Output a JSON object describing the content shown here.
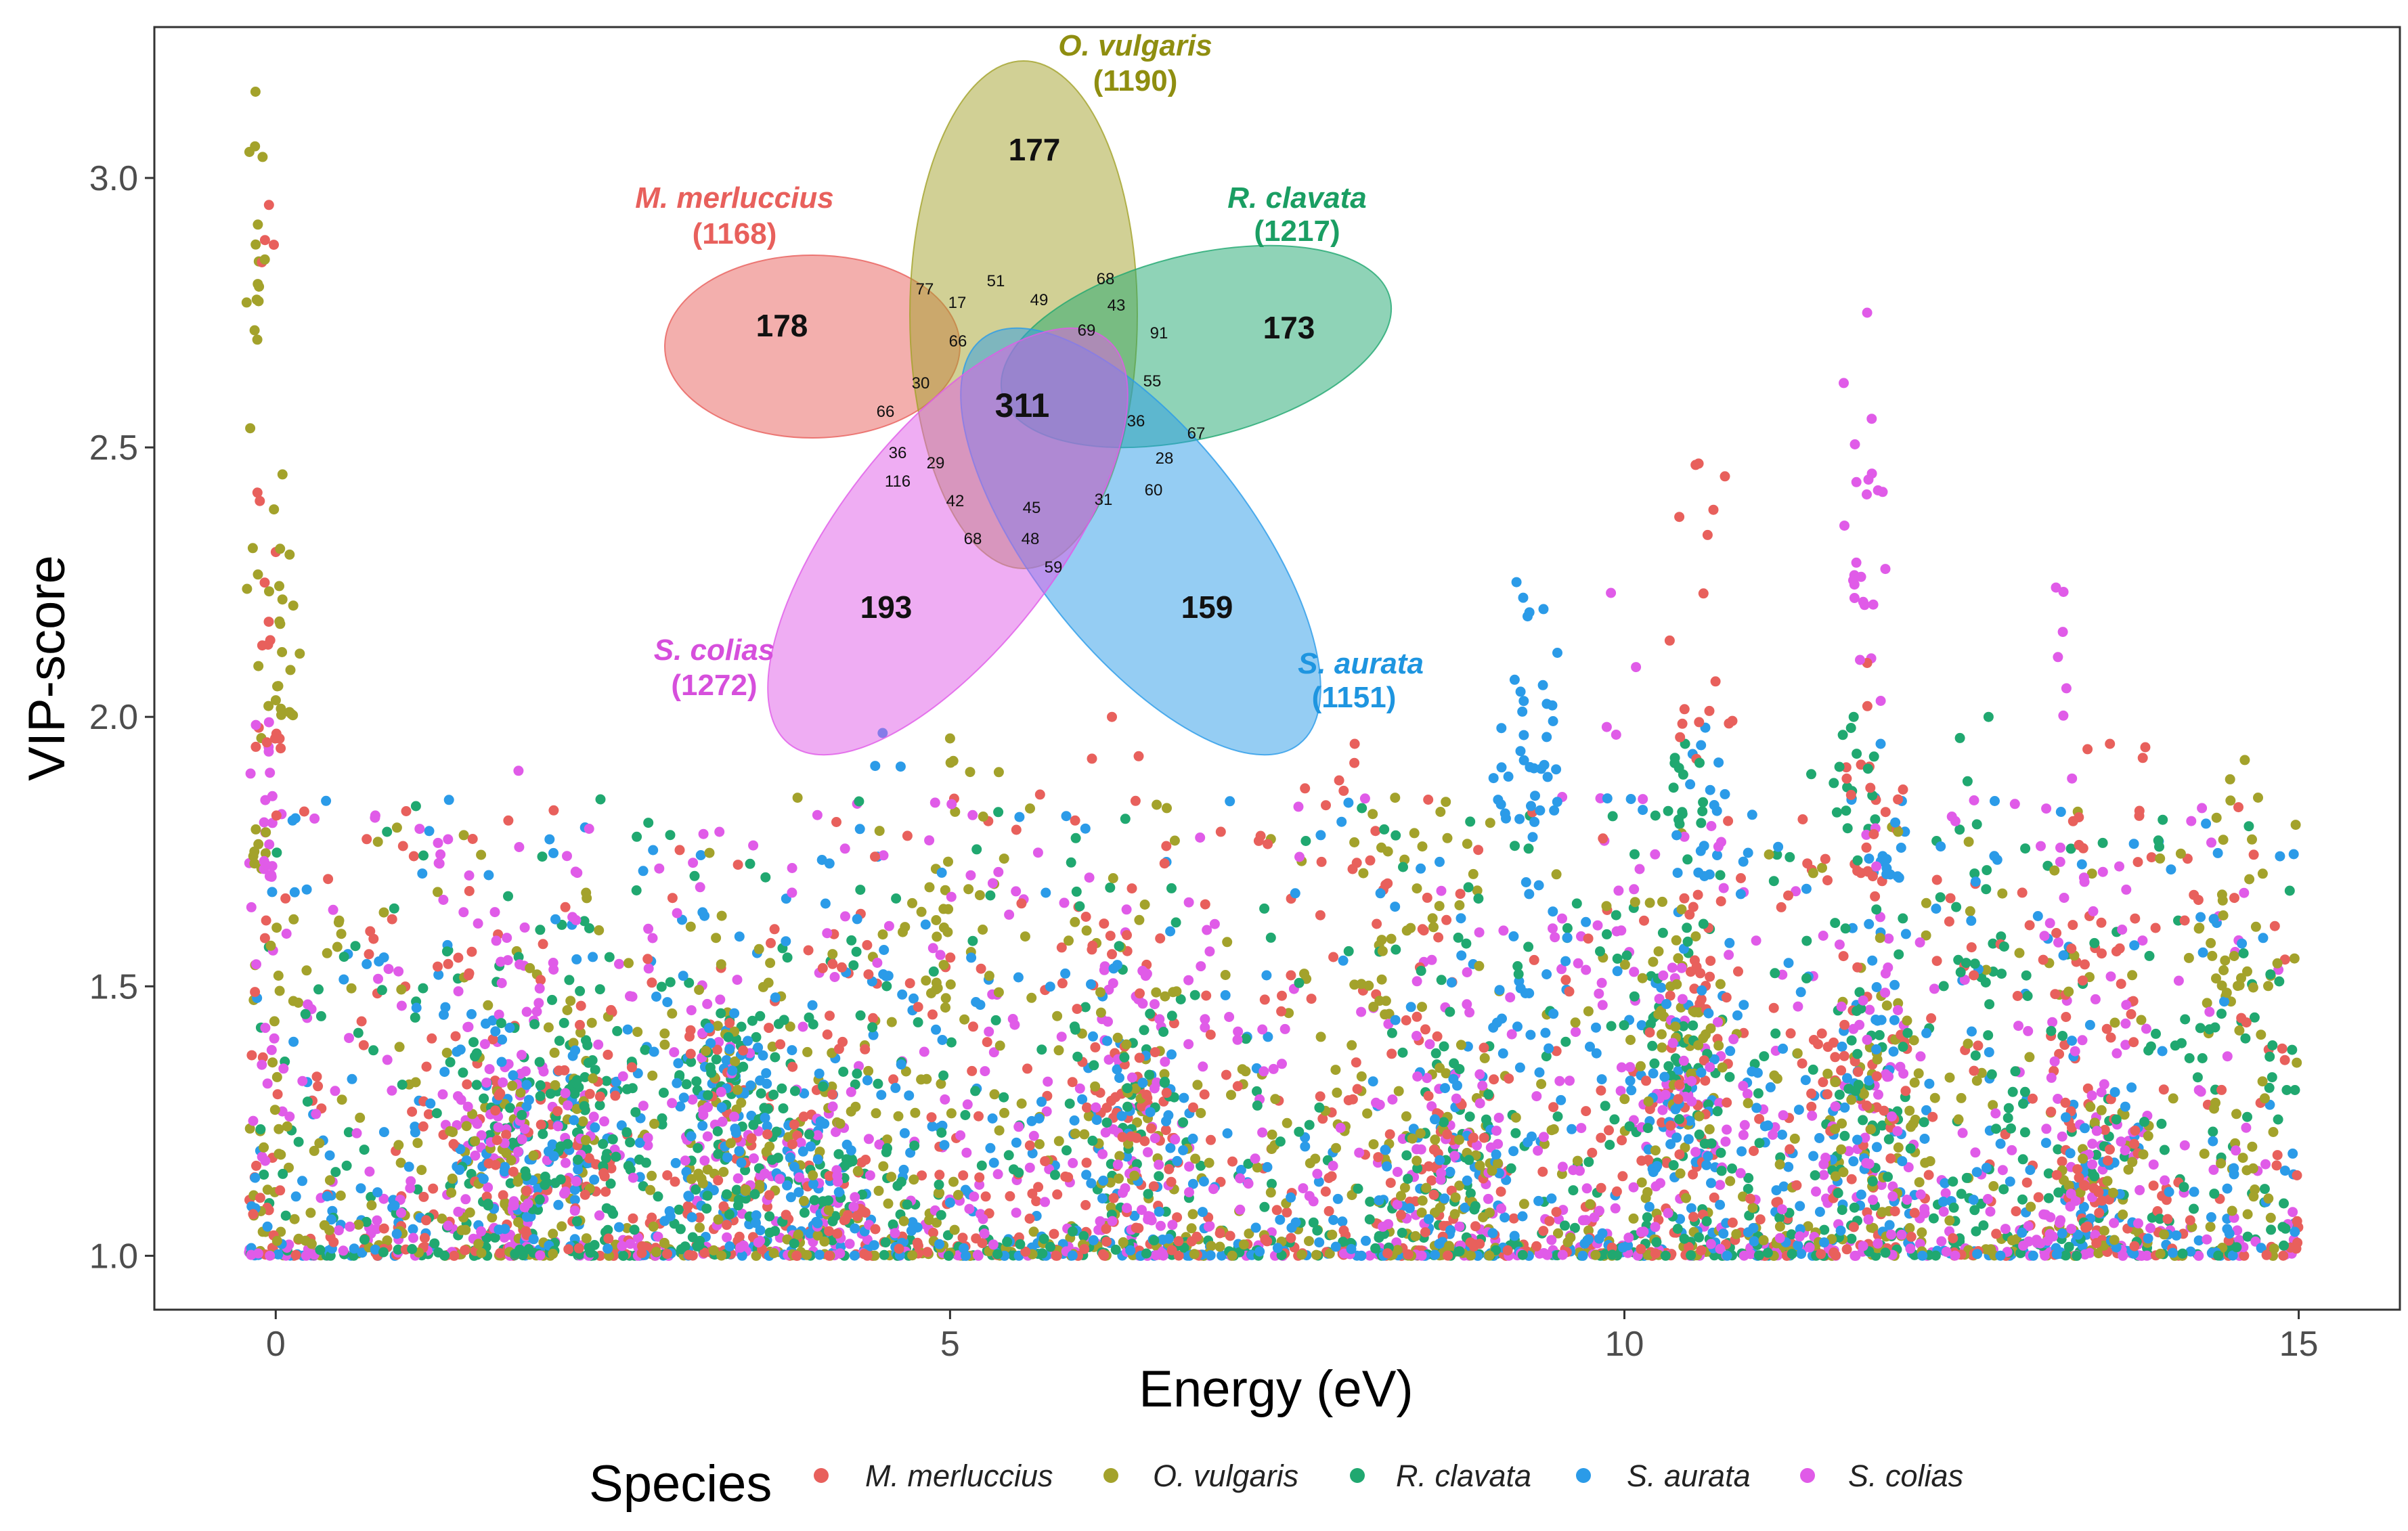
{
  "chart_data": {
    "type": "scatter",
    "xlabel": "Energy (eV)",
    "ylabel": "VIP-score",
    "xlim": [
      -0.9,
      15.75
    ],
    "ylim": [
      0.9,
      3.28
    ],
    "x_ticks": [
      0,
      5,
      10,
      15
    ],
    "y_ticks": [
      1.0,
      1.5,
      2.0,
      2.5,
      3.0
    ],
    "x_tick_labels": [
      "0",
      "5",
      "10",
      "15"
    ],
    "y_tick_labels": [
      "1.0",
      "1.5",
      "2.0",
      "2.5",
      "3.0"
    ],
    "grid": false,
    "legend": {
      "title": "Species",
      "position": "bottom",
      "entries": [
        "M. merluccius",
        "O. vulgaris",
        "R. clavata",
        "S. aurata",
        "S. colias"
      ]
    },
    "series": [
      {
        "name": "M. merluccius",
        "color": "#E8605C",
        "n": 1100,
        "peaks": [
          [
            -0.05,
            2.95,
            1.92,
            0.06
          ],
          [
            10.55,
            2.47,
            1.95,
            0.12
          ],
          [
            8.0,
            1.95,
            1.6,
            0.3
          ],
          [
            6.2,
            2.0,
            1.5,
            0.3
          ],
          [
            11.8,
            2.1,
            1.7,
            0.15
          ],
          [
            13.6,
            1.95,
            1.5,
            0.2
          ]
        ]
      },
      {
        "name": "O. vulgaris",
        "color": "#A3A22B",
        "n": 1100,
        "peaks": [
          [
            -0.15,
            3.16,
            2.7,
            0.04
          ],
          [
            0.05,
            2.45,
            2.0,
            0.08
          ],
          [
            8.3,
            1.85,
            1.5,
            0.3
          ],
          [
            5.0,
            1.96,
            1.6,
            0.2
          ],
          [
            14.6,
            1.92,
            1.5,
            0.2
          ]
        ]
      },
      {
        "name": "R. clavata",
        "color": "#20A870",
        "n": 1150,
        "peaks": [
          [
            10.45,
            1.95,
            1.8,
            0.13
          ],
          [
            11.7,
            2.0,
            1.85,
            0.15
          ],
          [
            3.3,
            1.45,
            1.3,
            0.2
          ],
          [
            2.3,
            1.4,
            1.3,
            0.2
          ],
          [
            12.7,
            2.0,
            1.5,
            0.2
          ]
        ]
      },
      {
        "name": "S. aurata",
        "color": "#2B9BE8",
        "n": 1100,
        "peaks": [
          [
            9.2,
            2.25,
            1.8,
            0.12
          ],
          [
            9.4,
            2.2,
            1.9,
            0.08
          ],
          [
            10.6,
            1.98,
            1.7,
            0.13
          ],
          [
            11.9,
            1.95,
            1.7,
            0.12
          ],
          [
            4.5,
            1.97,
            1.5,
            0.3
          ],
          [
            3.4,
            1.45,
            1.3,
            0.2
          ]
        ]
      },
      {
        "name": "S. colias",
        "color": "#E05BE8",
        "n": 1150,
        "peaks": [
          [
            11.8,
            2.75,
            2.2,
            0.1
          ],
          [
            9.9,
            2.23,
            1.6,
            0.2
          ],
          [
            13.2,
            2.24,
            1.6,
            0.2
          ],
          [
            1.8,
            1.9,
            1.5,
            0.15
          ],
          [
            6.3,
            1.6,
            1.4,
            0.3
          ],
          [
            -0.05,
            1.99,
            1.7,
            0.06
          ],
          [
            1.7,
            1.35,
            1.2,
            0.15
          ]
        ]
      }
    ],
    "inset_venn": {
      "type": "venn",
      "sets": [
        {
          "name": "M. merluccius",
          "total": "(1168)",
          "unique": "178",
          "color": "#E8605C",
          "label_color": "#E8605C"
        },
        {
          "name": "O. vulgaris",
          "total": "(1190)",
          "unique": "177",
          "color": "#A3A22B",
          "label_color": "#8F8E10"
        },
        {
          "name": "R. clavata",
          "total": "(1217)",
          "unique": "173",
          "color": "#20A870",
          "label_color": "#1A9E63"
        },
        {
          "name": "S. aurata",
          "total": "(1151)",
          "unique": "159",
          "color": "#2B9BE8",
          "label_color": "#1E95E0"
        },
        {
          "name": "S. colias",
          "total": "(1272)",
          "unique": "193",
          "color": "#E05BE8",
          "label_color": "#D64FDC"
        }
      ],
      "center": "311",
      "intersections": [
        "77",
        "51",
        "68",
        "17",
        "49",
        "43",
        "66",
        "69",
        "91",
        "30",
        "55",
        "66",
        "36",
        "67",
        "36",
        "28",
        "29",
        "116",
        "60",
        "42",
        "45",
        "31",
        "68",
        "48",
        "59"
      ]
    }
  }
}
